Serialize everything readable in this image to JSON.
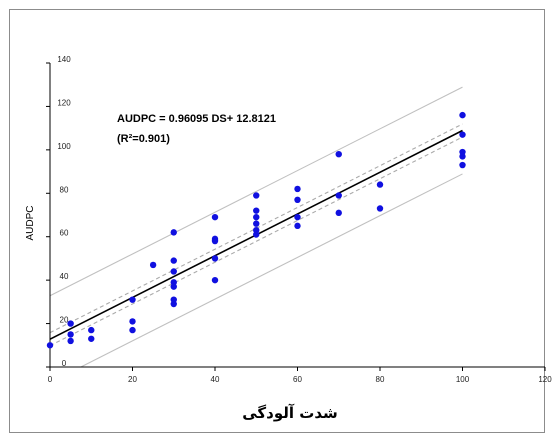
{
  "chart_data": {
    "type": "scatter",
    "xlabel": "شدت آلودگی",
    "ylabel": "AUDPC",
    "xlim": [
      0,
      120
    ],
    "ylim": [
      0,
      140
    ],
    "xticks": [
      "0",
      "20",
      "40",
      "60",
      "80",
      "100",
      "120"
    ],
    "yticks": [
      "0",
      "20",
      "40",
      "60",
      "80",
      "100",
      "120",
      "140"
    ],
    "grid": false,
    "equation": "AUDPC = 0.96095 DS+ 12.8121",
    "r_squared": "(R²=0.901)",
    "regression": {
      "slope": 0.96095,
      "intercept": 12.8121
    },
    "confidence_band_halfwidth": 3,
    "prediction_band_halfwidth": 20,
    "colors": {
      "points": "#1010e0",
      "regression": "#000000",
      "confidence": "#aaaaaa",
      "prediction": "#c0c0c0"
    },
    "points": [
      [
        0,
        10
      ],
      [
        5,
        12
      ],
      [
        5,
        15
      ],
      [
        5,
        20
      ],
      [
        10,
        13
      ],
      [
        10,
        17
      ],
      [
        20,
        17
      ],
      [
        20,
        21
      ],
      [
        20,
        31
      ],
      [
        25,
        47
      ],
      [
        30,
        29
      ],
      [
        30,
        31
      ],
      [
        30,
        37
      ],
      [
        30,
        39
      ],
      [
        30,
        44
      ],
      [
        30,
        49
      ],
      [
        30,
        62
      ],
      [
        40,
        40
      ],
      [
        40,
        50
      ],
      [
        40,
        58
      ],
      [
        40,
        59
      ],
      [
        40,
        69
      ],
      [
        50,
        61
      ],
      [
        50,
        63
      ],
      [
        50,
        66
      ],
      [
        50,
        69
      ],
      [
        50,
        72
      ],
      [
        50,
        79
      ],
      [
        60,
        65
      ],
      [
        60,
        69
      ],
      [
        60,
        77
      ],
      [
        60,
        82
      ],
      [
        70,
        71
      ],
      [
        70,
        79
      ],
      [
        70,
        98
      ],
      [
        80,
        73
      ],
      [
        80,
        84
      ],
      [
        100,
        93
      ],
      [
        100,
        97
      ],
      [
        100,
        99
      ],
      [
        100,
        107
      ],
      [
        100,
        116
      ]
    ]
  }
}
